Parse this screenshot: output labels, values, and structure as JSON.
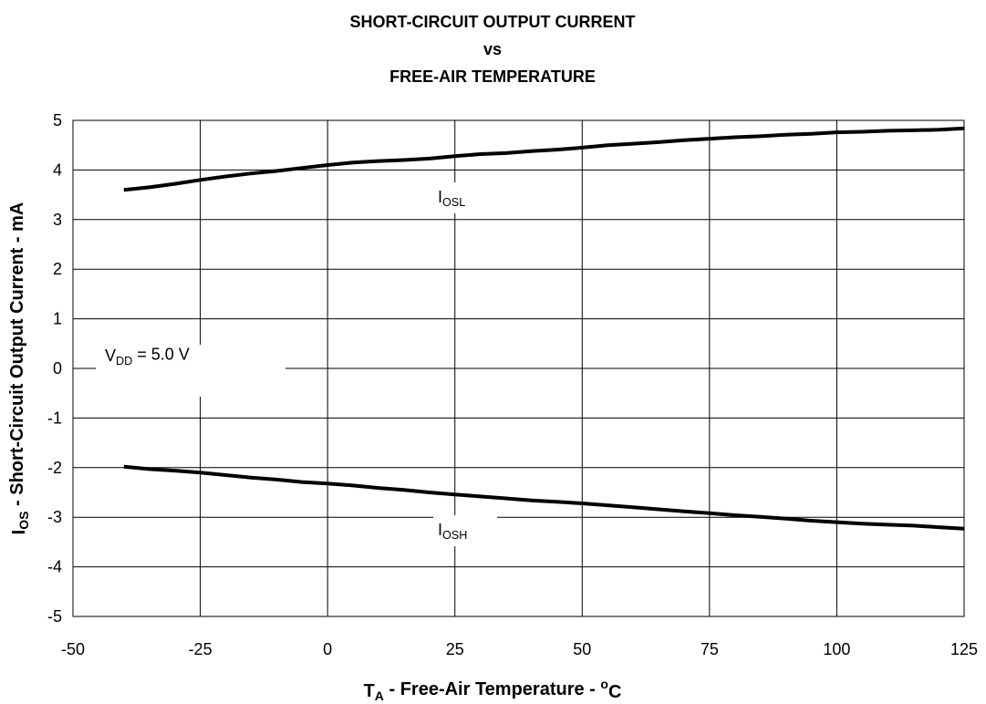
{
  "chart_data": {
    "type": "line",
    "title": [
      "SHORT-CIRCUIT OUTPUT CURRENT",
      "vs",
      "FREE-AIR TEMPERATURE"
    ],
    "x_label": {
      "main": "T",
      "sub": "A",
      "rest": " - Free-Air Temperature - ",
      "sup": "o",
      "unit": "C"
    },
    "y_label": {
      "main": "I",
      "sub": "OS",
      "rest": " - Short-Circuit Output Current - mA"
    },
    "annotation": {
      "main": "V",
      "sub": "DD",
      "rest": " = 5.0 V"
    },
    "x": [
      -40,
      -35,
      -30,
      -25,
      -20,
      -15,
      -10,
      -5,
      0,
      5,
      10,
      15,
      20,
      25,
      30,
      35,
      40,
      45,
      50,
      55,
      60,
      65,
      70,
      75,
      80,
      85,
      90,
      95,
      100,
      105,
      110,
      115,
      120,
      125
    ],
    "series": [
      {
        "label": {
          "main": "I",
          "sub": "OSL"
        },
        "color": "#000000",
        "values": [
          3.6,
          3.65,
          3.72,
          3.8,
          3.87,
          3.93,
          3.98,
          4.04,
          4.1,
          4.15,
          4.18,
          4.2,
          4.23,
          4.28,
          4.32,
          4.34,
          4.38,
          4.41,
          4.45,
          4.5,
          4.53,
          4.56,
          4.6,
          4.63,
          4.66,
          4.68,
          4.71,
          4.73,
          4.76,
          4.77,
          4.79,
          4.8,
          4.81,
          4.84
        ]
      },
      {
        "label": {
          "main": "I",
          "sub": "OSH"
        },
        "color": "#000000",
        "values": [
          -1.98,
          -2.03,
          -2.06,
          -2.1,
          -2.15,
          -2.2,
          -2.24,
          -2.29,
          -2.32,
          -2.36,
          -2.41,
          -2.45,
          -2.5,
          -2.54,
          -2.58,
          -2.62,
          -2.66,
          -2.69,
          -2.72,
          -2.76,
          -2.8,
          -2.84,
          -2.88,
          -2.92,
          -2.96,
          -2.99,
          -3.03,
          -3.07,
          -3.1,
          -3.13,
          -3.15,
          -3.17,
          -3.2,
          -3.23
        ]
      }
    ],
    "xlim": [
      -50,
      125
    ],
    "xticks": [
      -50,
      -25,
      0,
      25,
      50,
      75,
      100,
      125
    ],
    "ylim": [
      -5,
      5
    ],
    "yticks": [
      -5,
      -4,
      -3,
      -2,
      -1,
      0,
      1,
      2,
      3,
      4,
      5
    ],
    "grid": true
  }
}
